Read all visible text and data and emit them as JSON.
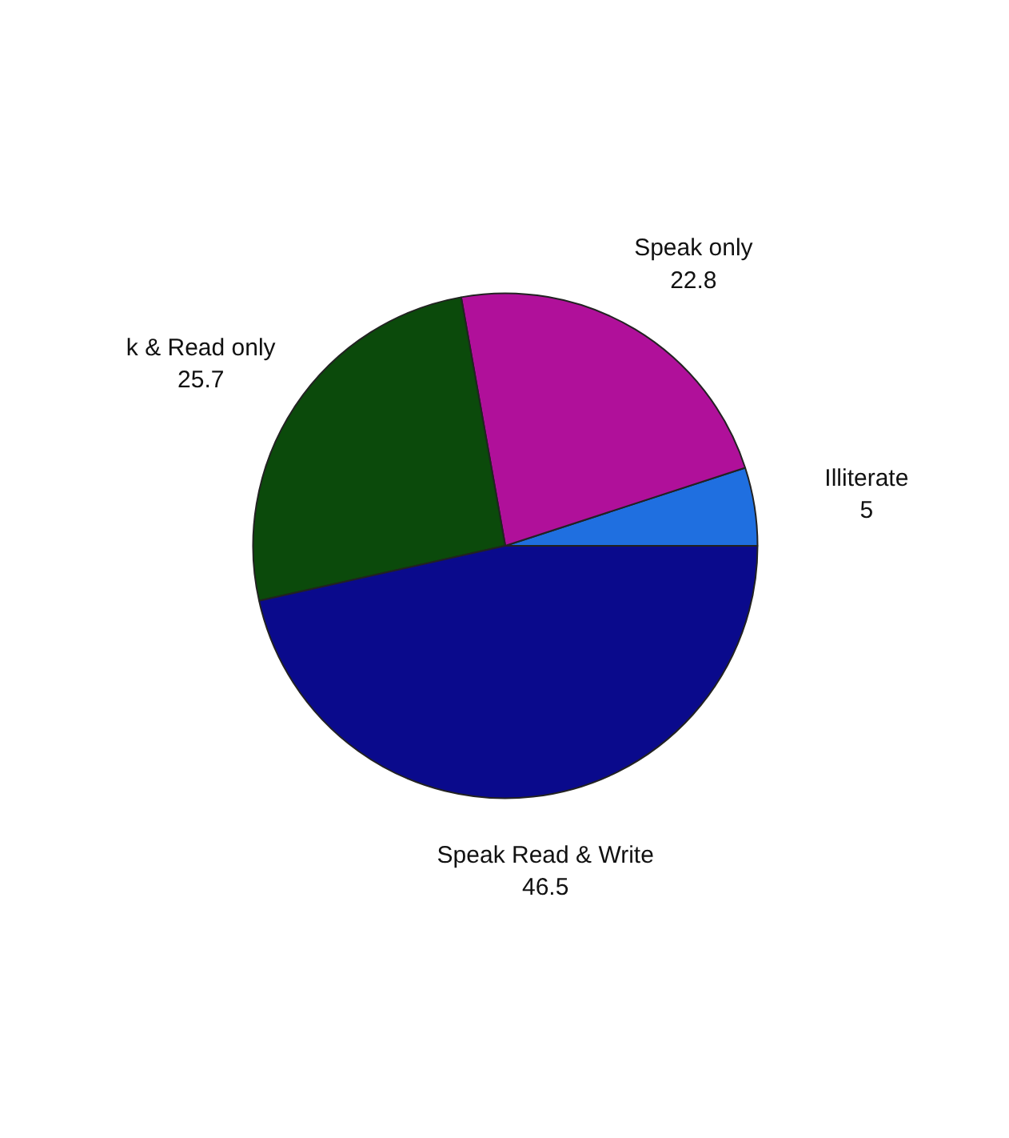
{
  "chart_data": {
    "type": "pie",
    "categories": [
      "Illiterate",
      "Speak only",
      "k & Read only",
      "Speak Read & Write"
    ],
    "values": [
      5,
      22.8,
      25.7,
      46.5
    ],
    "colors": [
      "#1f6fe0",
      "#b0109a",
      "#0b4a0b",
      "#0a0a8c"
    ],
    "data_labels": true
  }
}
